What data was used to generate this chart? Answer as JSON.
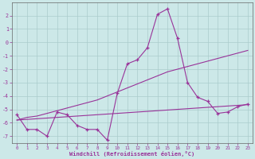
{
  "xlabel": "Windchill (Refroidissement éolien,°C)",
  "background_color": "#cce8e8",
  "grid_color": "#aacccc",
  "line_color": "#993399",
  "x_hours": [
    0,
    1,
    2,
    3,
    4,
    5,
    6,
    7,
    8,
    9,
    10,
    11,
    12,
    13,
    14,
    15,
    16,
    17,
    18,
    19,
    20,
    21,
    22,
    23
  ],
  "main_line": [
    -5.4,
    -6.5,
    -6.5,
    -7.0,
    -5.2,
    -5.4,
    -6.2,
    -6.5,
    -6.5,
    -7.3,
    -3.8,
    -1.6,
    -1.3,
    -0.4,
    2.1,
    2.5,
    0.3,
    -3.0,
    -4.1,
    -4.4,
    -5.3,
    -5.2,
    -4.8,
    -4.6
  ],
  "trend_upper": [
    -5.8,
    -5.6,
    -5.5,
    -5.3,
    -5.1,
    -4.9,
    -4.7,
    -4.5,
    -4.3,
    -4.0,
    -3.7,
    -3.4,
    -3.1,
    -2.8,
    -2.5,
    -2.2,
    -2.0,
    -1.8,
    -1.6,
    -1.4,
    -1.2,
    -1.0,
    -0.8,
    -0.6
  ],
  "trend_lower": [
    -5.8,
    -5.75,
    -5.7,
    -5.65,
    -5.6,
    -5.55,
    -5.5,
    -5.45,
    -5.4,
    -5.35,
    -5.3,
    -5.25,
    -5.2,
    -5.15,
    -5.1,
    -5.05,
    -5.0,
    -4.95,
    -4.9,
    -4.85,
    -4.8,
    -4.75,
    -4.7,
    -4.65
  ],
  "ylim": [
    -7.5,
    3.0
  ],
  "xlim": [
    -0.5,
    23.5
  ],
  "yticks": [
    -7,
    -6,
    -5,
    -4,
    -3,
    -2,
    -1,
    0,
    1,
    2
  ],
  "xticks": [
    0,
    1,
    2,
    3,
    4,
    5,
    6,
    7,
    8,
    9,
    10,
    11,
    12,
    13,
    14,
    15,
    16,
    17,
    18,
    19,
    20,
    21,
    22,
    23
  ]
}
